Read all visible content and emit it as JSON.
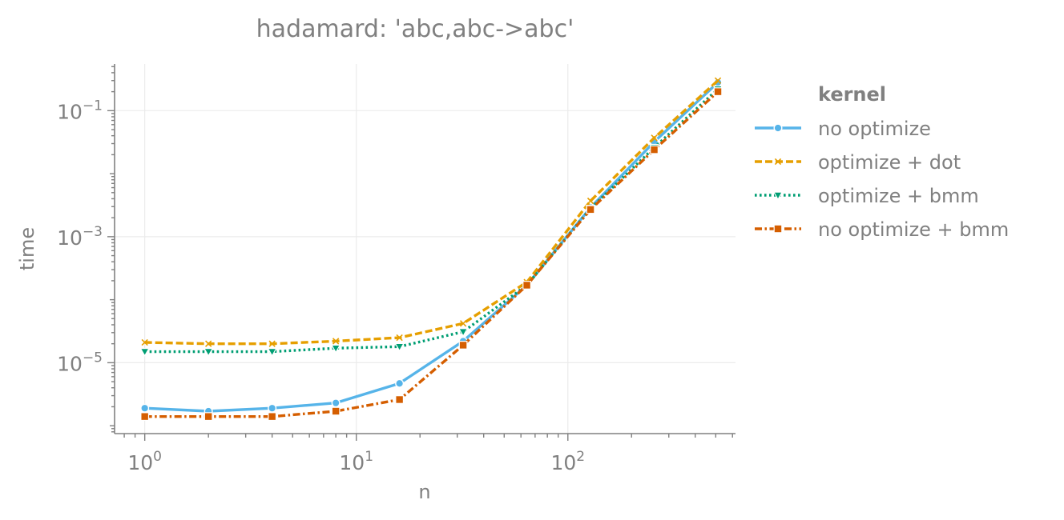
{
  "chart_data": {
    "type": "line",
    "title": "hadamard: 'abc,abc->abc'",
    "xlabel": "n",
    "ylabel": "time",
    "xscale": "log",
    "yscale": "log",
    "xlim": [
      0.72,
      620
    ],
    "ylim": [
      7.5e-07,
      0.55
    ],
    "xticks": [
      {
        "value": 1,
        "base": "10",
        "exp": "0"
      },
      {
        "value": 10,
        "base": "10",
        "exp": "1"
      },
      {
        "value": 100,
        "base": "10",
        "exp": "2"
      }
    ],
    "yticks": [
      {
        "value": 1e-05,
        "base": "10",
        "exp": "−5"
      },
      {
        "value": 0.001,
        "base": "10",
        "exp": "−3"
      },
      {
        "value": 0.1,
        "base": "10",
        "exp": "−1"
      }
    ],
    "grid": true,
    "legend_title": "kernel",
    "legend_position": "right",
    "x": [
      1,
      2,
      4,
      8,
      16,
      32,
      64,
      128,
      256,
      512
    ],
    "series": [
      {
        "name": "no optimize",
        "color": "#56b4e9",
        "dash": "solid",
        "marker": "circle",
        "values": [
          1.9e-06,
          1.7e-06,
          1.9e-06,
          2.3e-06,
          4.7e-06,
          2.2e-05,
          0.00017,
          0.0029,
          0.032,
          0.28
        ]
      },
      {
        "name": "optimize + dot",
        "color": "#e69f00",
        "dash": "dashed",
        "marker": "x",
        "values": [
          2.1e-05,
          2e-05,
          2e-05,
          2.2e-05,
          2.5e-05,
          4.2e-05,
          0.00019,
          0.0037,
          0.037,
          0.3
        ]
      },
      {
        "name": "optimize + bmm",
        "color": "#009e73",
        "dash": "dotted",
        "marker": "triangle-down",
        "values": [
          1.5e-05,
          1.5e-05,
          1.5e-05,
          1.7e-05,
          1.8e-05,
          3.1e-05,
          0.00017,
          0.0028,
          0.026,
          0.22
        ]
      },
      {
        "name": "no optimize + bmm",
        "color": "#d55e00",
        "dash": "dashdot",
        "marker": "square",
        "values": [
          1.4e-06,
          1.4e-06,
          1.4e-06,
          1.7e-06,
          2.6e-06,
          1.9e-05,
          0.00017,
          0.0027,
          0.024,
          0.2
        ]
      }
    ]
  }
}
